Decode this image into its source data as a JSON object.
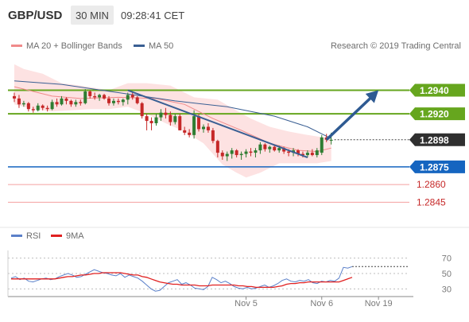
{
  "header": {
    "symbol": "GBP/USD",
    "interval": "30 MIN",
    "time": "09:28:41 CET"
  },
  "credit": "Research © 2019 Trading Central",
  "legend": {
    "bollinger": "MA 20 + Bollinger Bands",
    "ma50": "MA 50",
    "rsi": "RSI",
    "rsi_ma": "9MA"
  },
  "colors": {
    "bull": "#2e7d32",
    "bear": "#c62828",
    "band_fill": "#fde2e2",
    "ma20": "#f08a8a",
    "ma50": "#3a5f93",
    "support": "#1565c0",
    "resistance": "#66a61e",
    "weak_line": "#f4a0a0",
    "arrow": "#2e5a92",
    "rsi_line": "#5b80c9",
    "rsi_ma": "#e02020"
  },
  "chart_data": [
    {
      "type": "candlestick",
      "ylim": [
        1.2825,
        1.2968
      ],
      "x_ticks": [
        {
          "label": "Nov 5",
          "index": 49
        },
        {
          "label": "Nov 6",
          "index": 65
        },
        {
          "label": "Nov 19",
          "index": 77
        }
      ],
      "candles": [
        [
          1.2935,
          1.2938,
          1.293,
          1.2933
        ],
        [
          1.2933,
          1.2936,
          1.2925,
          1.2928
        ],
        [
          1.2928,
          1.2931,
          1.2926,
          1.2929
        ],
        [
          1.2929,
          1.293,
          1.2922,
          1.2924
        ],
        [
          1.2924,
          1.2926,
          1.2921,
          1.2923
        ],
        [
          1.2923,
          1.2929,
          1.2922,
          1.2927
        ],
        [
          1.2927,
          1.2928,
          1.2923,
          1.2925
        ],
        [
          1.2925,
          1.2927,
          1.2922,
          1.2924
        ],
        [
          1.2924,
          1.2932,
          1.2923,
          1.293
        ],
        [
          1.293,
          1.2933,
          1.2926,
          1.2928
        ],
        [
          1.2928,
          1.2935,
          1.2927,
          1.2933
        ],
        [
          1.2933,
          1.2934,
          1.2928,
          1.2931
        ],
        [
          1.2931,
          1.2932,
          1.2926,
          1.2928
        ],
        [
          1.2928,
          1.2932,
          1.2926,
          1.293
        ],
        [
          1.293,
          1.2932,
          1.2927,
          1.2929
        ],
        [
          1.2929,
          1.2941,
          1.2928,
          1.2939
        ],
        [
          1.2939,
          1.294,
          1.2933,
          1.2935
        ],
        [
          1.2935,
          1.2938,
          1.2932,
          1.2934
        ],
        [
          1.2934,
          1.2937,
          1.2931,
          1.2936
        ],
        [
          1.2936,
          1.2937,
          1.2932,
          1.2933
        ],
        [
          1.2933,
          1.2935,
          1.2927,
          1.2929
        ],
        [
          1.2929,
          1.2933,
          1.2927,
          1.2931
        ],
        [
          1.2931,
          1.2933,
          1.2928,
          1.293
        ],
        [
          1.293,
          1.2933,
          1.2927,
          1.2932
        ],
        [
          1.2932,
          1.2938,
          1.2928,
          1.2936
        ],
        [
          1.2936,
          1.2939,
          1.2932,
          1.2934
        ],
        [
          1.2934,
          1.2935,
          1.2928,
          1.2929
        ],
        [
          1.2929,
          1.293,
          1.2916,
          1.2918
        ],
        [
          1.2918,
          1.292,
          1.2906,
          1.2914
        ],
        [
          1.2914,
          1.2917,
          1.2906,
          1.2912
        ],
        [
          1.2912,
          1.292,
          1.291,
          1.2917
        ],
        [
          1.2917,
          1.2924,
          1.2914,
          1.2921
        ],
        [
          1.2921,
          1.2925,
          1.2916,
          1.2919
        ],
        [
          1.2919,
          1.2922,
          1.291,
          1.2913
        ],
        [
          1.2913,
          1.292,
          1.2911,
          1.2918
        ],
        [
          1.2918,
          1.292,
          1.2906,
          1.2906
        ],
        [
          1.2906,
          1.2909,
          1.2902,
          1.2904
        ],
        [
          1.2904,
          1.2907,
          1.29,
          1.2902
        ],
        [
          1.2902,
          1.2923,
          1.2899,
          1.2918
        ],
        [
          1.2918,
          1.292,
          1.2905,
          1.2907
        ],
        [
          1.2907,
          1.2911,
          1.2904,
          1.2909
        ],
        [
          1.2909,
          1.2912,
          1.2904,
          1.2906
        ],
        [
          1.2906,
          1.2908,
          1.2895,
          1.2897
        ],
        [
          1.2897,
          1.2898,
          1.2883,
          1.2887
        ],
        [
          1.2887,
          1.2889,
          1.2881,
          1.2884
        ],
        [
          1.2884,
          1.2888,
          1.288,
          1.2886
        ],
        [
          1.2886,
          1.2891,
          1.2882,
          1.2889
        ],
        [
          1.2889,
          1.289,
          1.2883,
          1.2885
        ],
        [
          1.2885,
          1.2888,
          1.2881,
          1.2886
        ],
        [
          1.2886,
          1.289,
          1.2883,
          1.2888
        ],
        [
          1.2888,
          1.2891,
          1.2884,
          1.2887
        ],
        [
          1.2887,
          1.2891,
          1.2883,
          1.2889
        ],
        [
          1.2889,
          1.2896,
          1.2886,
          1.2894
        ],
        [
          1.2894,
          1.2895,
          1.2888,
          1.289
        ],
        [
          1.289,
          1.2893,
          1.2887,
          1.2892
        ],
        [
          1.2892,
          1.2894,
          1.2888,
          1.2889
        ],
        [
          1.2889,
          1.2893,
          1.2887,
          1.2891
        ],
        [
          1.2891,
          1.2892,
          1.2886,
          1.2888
        ],
        [
          1.2888,
          1.289,
          1.2884,
          1.2887
        ],
        [
          1.2887,
          1.2891,
          1.2884,
          1.2889
        ],
        [
          1.2889,
          1.289,
          1.2884,
          1.2886
        ],
        [
          1.2886,
          1.2888,
          1.2883,
          1.2885
        ],
        [
          1.2885,
          1.2889,
          1.2883,
          1.2887
        ],
        [
          1.2887,
          1.289,
          1.2884,
          1.2885
        ],
        [
          1.2885,
          1.2891,
          1.2883,
          1.2889
        ],
        [
          1.2887,
          1.2902,
          1.2885,
          1.29
        ],
        [
          1.29,
          1.2903,
          1.2896,
          1.2898
        ],
        [
          1.2898,
          1.2904,
          1.2894,
          1.2898
        ]
      ],
      "ma50": [
        [
          0,
          1.2948
        ],
        [
          10,
          1.2945
        ],
        [
          22,
          1.2938
        ],
        [
          34,
          1.2931
        ],
        [
          45,
          1.2926
        ],
        [
          55,
          1.2918
        ],
        [
          62,
          1.2909
        ],
        [
          66,
          1.2901
        ],
        [
          67,
          1.2899
        ]
      ],
      "ma20": [
        [
          0,
          1.2943
        ],
        [
          8,
          1.2935
        ],
        [
          14,
          1.2933
        ],
        [
          22,
          1.2934
        ],
        [
          30,
          1.2933
        ],
        [
          36,
          1.2928
        ],
        [
          42,
          1.2916
        ],
        [
          48,
          1.2906
        ],
        [
          54,
          1.2895
        ],
        [
          60,
          1.2889
        ],
        [
          64,
          1.2888
        ],
        [
          67,
          1.2891
        ]
      ],
      "band_upper": [
        [
          0,
          1.2962
        ],
        [
          2,
          1.2958
        ],
        [
          6,
          1.2954
        ],
        [
          10,
          1.2946
        ],
        [
          14,
          1.2944
        ],
        [
          17,
          1.2942
        ],
        [
          20,
          1.294
        ],
        [
          24,
          1.2946
        ],
        [
          28,
          1.2946
        ],
        [
          33,
          1.2944
        ],
        [
          38,
          1.2934
        ],
        [
          43,
          1.2932
        ],
        [
          46,
          1.2925
        ],
        [
          50,
          1.2916
        ],
        [
          54,
          1.2909
        ],
        [
          58,
          1.2905
        ],
        [
          62,
          1.2902
        ],
        [
          67,
          1.2899
        ]
      ],
      "band_lower": [
        [
          67,
          1.288
        ],
        [
          64,
          1.2878
        ],
        [
          60,
          1.2878
        ],
        [
          56,
          1.2878
        ],
        [
          52,
          1.287
        ],
        [
          49,
          1.2866
        ],
        [
          47,
          1.287
        ],
        [
          44,
          1.2877
        ],
        [
          40,
          1.2895
        ],
        [
          36,
          1.2905
        ],
        [
          32,
          1.2912
        ],
        [
          28,
          1.292
        ],
        [
          24,
          1.2926
        ],
        [
          20,
          1.2924
        ],
        [
          16,
          1.2924
        ],
        [
          12,
          1.2923
        ],
        [
          8,
          1.2922
        ],
        [
          4,
          1.2924
        ],
        [
          0,
          1.2928
        ]
      ],
      "trendline": [
        [
          24,
          1.294
        ],
        [
          62,
          1.2883
        ]
      ],
      "arrow": [
        [
          66,
          1.2898
        ],
        [
          77,
          1.294
        ]
      ],
      "current_price": 1.2898,
      "levels": [
        {
          "value": 1.294,
          "label": "1.2940",
          "kind": "resistance"
        },
        {
          "value": 1.292,
          "label": "1.2920",
          "kind": "resistance"
        },
        {
          "value": 1.2898,
          "label": "1.2898",
          "kind": "current"
        },
        {
          "value": 1.2875,
          "label": "1.2875",
          "kind": "support"
        },
        {
          "value": 1.286,
          "label": "1.2860",
          "kind": "weak"
        },
        {
          "value": 1.2845,
          "label": "1.2845",
          "kind": "weak"
        }
      ]
    },
    {
      "type": "line",
      "ylim": [
        20,
        80
      ],
      "y_ticks": [
        70,
        50,
        30
      ],
      "series": [
        {
          "name": "RSI",
          "values": [
            44,
            46,
            42,
            44,
            40,
            39,
            41,
            43,
            44,
            42,
            43,
            46,
            48,
            50,
            48,
            45,
            46,
            49,
            52,
            55,
            53,
            51,
            50,
            48,
            47,
            50,
            45,
            48,
            46,
            44,
            40,
            35,
            30,
            27,
            28,
            33,
            38,
            40,
            42,
            36,
            38,
            35,
            31,
            30,
            29,
            33,
            45,
            42,
            38,
            40,
            37,
            33,
            31,
            30,
            32,
            30,
            31,
            33,
            35,
            32,
            34,
            37,
            41,
            43,
            40,
            39,
            41,
            40,
            42,
            38,
            37,
            40,
            39,
            41,
            40,
            44,
            58,
            57,
            59
          ]
        },
        {
          "name": "9MA",
          "values": [
            43,
            43,
            43,
            43,
            43,
            43,
            43,
            43,
            43,
            43,
            43,
            44,
            45,
            46,
            46,
            47,
            48,
            48,
            49,
            50,
            50,
            51,
            51,
            51,
            51,
            51,
            50,
            49,
            48,
            48,
            46,
            45,
            43,
            41,
            39,
            38,
            37,
            36,
            36,
            35,
            35,
            35,
            35,
            34,
            34,
            34,
            35,
            35,
            35,
            35,
            35,
            35,
            34,
            34,
            33,
            33,
            32,
            32,
            32,
            32,
            32,
            33,
            34,
            36,
            37,
            37,
            38,
            38,
            39,
            39,
            39,
            39,
            39,
            39,
            39,
            39,
            41,
            43,
            45
          ]
        }
      ]
    }
  ]
}
